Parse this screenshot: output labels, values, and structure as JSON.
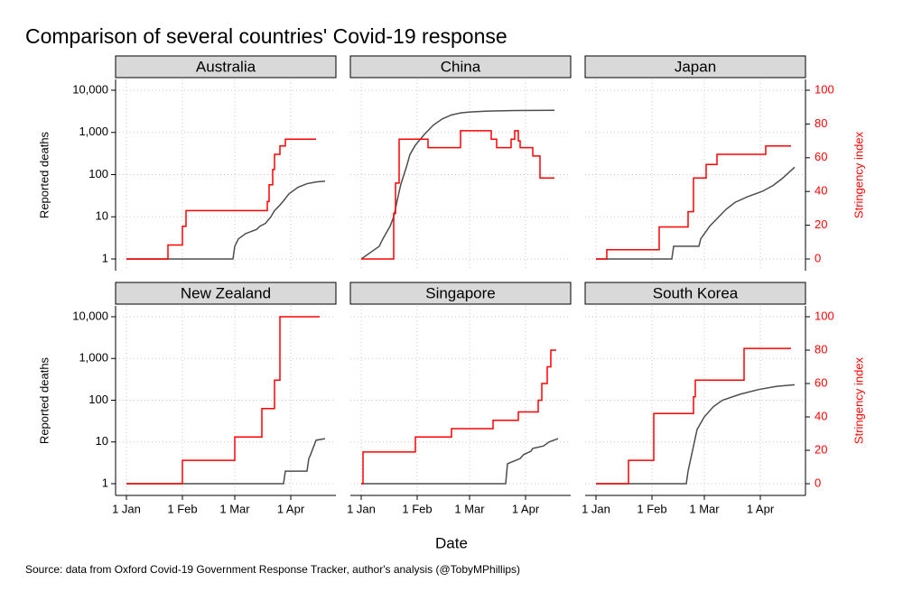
{
  "title": "Comparison of several countries' Covid-19 response",
  "x_label": "Date",
  "source": "Source: data from Oxford Covid-19 Government Response Tracker, author's analysis (@TobyMPhillips)",
  "chart_data": [
    {
      "type": "line",
      "title": "Australia",
      "y_label": "Reported deaths",
      "xlim": [
        "1 Jan",
        "20 Apr"
      ],
      "xticks": [
        "1 Jan",
        "1 Feb",
        "1 Mar",
        "1 Apr"
      ],
      "ylim": [
        1,
        10000
      ],
      "y_scale": "log",
      "yticks": [
        1,
        10,
        100,
        {
          "value": 1000,
          "label": "1,000"
        },
        {
          "value": 10000,
          "label": "10,000"
        }
      ],
      "y2lim": [
        0,
        100
      ],
      "grid": true,
      "series": [
        {
          "color": "#4d4d4d",
          "axis": "y",
          "x": [
            "1 Jan",
            "29 Feb",
            "1 Mar",
            "3 Mar",
            "7 Mar",
            "13 Mar",
            "15 Mar",
            "18 Mar",
            "21 Mar",
            "23 Mar",
            "26 Mar",
            "28 Mar",
            "31 Mar",
            "5 Apr",
            "10 Apr",
            "15 Apr",
            "20 Apr"
          ],
          "values": [
            1,
            1,
            2,
            3,
            4,
            5,
            6,
            7,
            10,
            14,
            19,
            24,
            35,
            50,
            61,
            67,
            70
          ]
        },
        {
          "color": "#ff0000",
          "axis": "y2",
          "step": true,
          "x": [
            "1 Jan",
            "24 Jan",
            "1 Feb",
            "3 Feb",
            "19 Mar",
            "20 Mar",
            "22 Mar",
            "23 Mar",
            "26 Mar",
            "29 Mar",
            "15 Apr"
          ],
          "values": [
            0,
            8.3,
            19.4,
            28.7,
            34,
            44,
            53,
            62,
            67,
            71,
            71
          ]
        }
      ]
    },
    {
      "type": "line",
      "title": "China",
      "xlim": [
        "1 Jan",
        "20 Apr"
      ],
      "xticks": [
        "1 Jan",
        "1 Feb",
        "1 Mar",
        "1 Apr"
      ],
      "ylim": [
        1,
        10000
      ],
      "y_scale": "log",
      "yticks": [
        1,
        10,
        100,
        {
          "value": 1000,
          "label": "1,000"
        },
        {
          "value": 10000,
          "label": "10,000"
        }
      ],
      "y2lim": [
        0,
        100
      ],
      "grid": true,
      "series": [
        {
          "color": "#4d4d4d",
          "axis": "y",
          "x": [
            "1 Jan",
            "11 Jan",
            "13 Jan",
            "17 Jan",
            "19 Jan",
            "21 Jan",
            "23 Jan",
            "26 Jan",
            "28 Jan",
            "31 Jan",
            "5 Feb",
            "10 Feb",
            "15 Feb",
            "20 Feb",
            "25 Feb",
            "1 Mar",
            "11 Mar",
            "26 Mar",
            "17 Apr"
          ],
          "values": [
            1,
            2,
            3,
            6,
            10,
            25,
            60,
            150,
            300,
            500,
            900,
            1500,
            2100,
            2600,
            2900,
            3050,
            3200,
            3300,
            3340
          ]
        },
        {
          "color": "#ff0000",
          "axis": "y2",
          "step": true,
          "x": [
            "1 Jan",
            "19 Jan",
            "20 Jan",
            "22 Jan",
            "7 Feb",
            "25 Feb",
            "13 Mar",
            "16 Mar",
            "24 Mar",
            "26 Mar",
            "28 Mar",
            "29 Mar",
            "5 Apr",
            "9 Apr",
            "17 Apr"
          ],
          "values": [
            0,
            27,
            45,
            71,
            66,
            76,
            71,
            66,
            71,
            76,
            70,
            66,
            61,
            48,
            48
          ]
        }
      ]
    },
    {
      "type": "line",
      "title": "Japan",
      "y2_label": "Stringency index",
      "xlim": [
        "1 Jan",
        "20 Apr"
      ],
      "xticks": [
        "1 Jan",
        "1 Feb",
        "1 Mar",
        "1 Apr"
      ],
      "ylim": [
        1,
        10000
      ],
      "y_scale": "log",
      "yticks": [
        1,
        10,
        100,
        {
          "value": 1000,
          "label": "1,000"
        },
        {
          "value": 10000,
          "label": "10,000"
        }
      ],
      "y2lim": [
        0,
        100
      ],
      "y2ticks": [
        0,
        20,
        40,
        60,
        80,
        100
      ],
      "grid": true,
      "series": [
        {
          "color": "#4d4d4d",
          "axis": "y",
          "x": [
            "1 Jan",
            "12 Feb",
            "13 Feb",
            "27 Feb",
            "28 Feb",
            "4 Mar",
            "9 Mar",
            "13 Mar",
            "18 Mar",
            "25 Mar",
            "2 Apr",
            "8 Apr",
            "13 Apr",
            "20 Apr"
          ],
          "values": [
            1,
            1,
            2,
            2,
            3,
            6,
            10,
            15,
            22,
            30,
            40,
            55,
            80,
            150
          ]
        },
        {
          "color": "#ff0000",
          "axis": "y2",
          "step": true,
          "x": [
            "1 Jan",
            "7 Jan",
            "5 Feb",
            "21 Feb",
            "24 Feb",
            "2 Mar",
            "8 Mar",
            "4 Apr",
            "18 Apr"
          ],
          "values": [
            0,
            5.5,
            19,
            28,
            48,
            56,
            62,
            67,
            67
          ]
        }
      ]
    },
    {
      "type": "line",
      "title": "New Zealand",
      "y_label": "Reported deaths",
      "xlim": [
        "1 Jan",
        "20 Apr"
      ],
      "xticks": [
        "1 Jan",
        "1 Feb",
        "1 Mar",
        "1 Apr"
      ],
      "ylim": [
        1,
        10000
      ],
      "y_scale": "log",
      "yticks": [
        1,
        10,
        100,
        {
          "value": 1000,
          "label": "1,000"
        },
        {
          "value": 10000,
          "label": "10,000"
        }
      ],
      "y2lim": [
        0,
        100
      ],
      "grid": true,
      "series": [
        {
          "color": "#4d4d4d",
          "axis": "y",
          "x": [
            "1 Jan",
            "28 Mar",
            "29 Mar",
            "10 Apr",
            "11 Apr",
            "12 Apr",
            "15 Apr",
            "20 Apr"
          ],
          "values": [
            1,
            1,
            2,
            2,
            4,
            5,
            11,
            12
          ]
        },
        {
          "color": "#ff0000",
          "axis": "y2",
          "step": true,
          "x": [
            "1 Jan",
            "1 Feb",
            "1 Mar",
            "16 Mar",
            "23 Mar",
            "26 Mar",
            "17 Apr"
          ],
          "values": [
            0,
            14,
            28,
            45,
            62,
            100,
            100
          ]
        }
      ]
    },
    {
      "type": "line",
      "title": "Singapore",
      "xlim": [
        "1 Jan",
        "20 Apr"
      ],
      "xticks": [
        "1 Jan",
        "1 Feb",
        "1 Mar",
        "1 Apr"
      ],
      "ylim": [
        1,
        10000
      ],
      "y_scale": "log",
      "yticks": [
        1,
        10,
        100,
        {
          "value": 1000,
          "label": "1,000"
        },
        {
          "value": 10000,
          "label": "10,000"
        }
      ],
      "y2lim": [
        0,
        100
      ],
      "grid": true,
      "series": [
        {
          "color": "#4d4d4d",
          "axis": "y",
          "x": [
            "1 Jan",
            "21 Mar",
            "22 Mar",
            "29 Mar",
            "31 Mar",
            "4 Apr",
            "5 Apr",
            "11 Apr",
            "14 Apr",
            "19 Apr"
          ],
          "values": [
            1,
            1,
            3,
            4,
            5,
            6,
            7,
            8,
            10,
            12
          ]
        },
        {
          "color": "#ff0000",
          "axis": "y2",
          "step": true,
          "x": [
            "1 Jan",
            "2 Jan",
            "31 Jan",
            "20 Feb",
            "14 Mar",
            "28 Mar",
            "8 Apr",
            "10 Apr",
            "13 Apr",
            "15 Apr",
            "18 Apr"
          ],
          "values": [
            0,
            19,
            28,
            33,
            38,
            43,
            50,
            60,
            70,
            80,
            80
          ]
        }
      ]
    },
    {
      "type": "line",
      "title": "South Korea",
      "y2_label": "Stringency index",
      "xlim": [
        "1 Jan",
        "20 Apr"
      ],
      "xticks": [
        "1 Jan",
        "1 Feb",
        "1 Mar",
        "1 Apr"
      ],
      "ylim": [
        1,
        10000
      ],
      "y_scale": "log",
      "yticks": [
        1,
        10,
        100,
        {
          "value": 1000,
          "label": "1,000"
        },
        {
          "value": 10000,
          "label": "10,000"
        }
      ],
      "y2lim": [
        0,
        100
      ],
      "y2ticks": [
        0,
        20,
        40,
        60,
        80,
        100
      ],
      "grid": true,
      "series": [
        {
          "color": "#4d4d4d",
          "axis": "y",
          "x": [
            "1 Jan",
            "20 Feb",
            "21 Feb",
            "24 Feb",
            "26 Feb",
            "1 Mar",
            "6 Mar",
            "11 Mar",
            "21 Mar",
            "31 Mar",
            "10 Apr",
            "20 Apr"
          ],
          "values": [
            1,
            1,
            2,
            8,
            20,
            40,
            70,
            100,
            140,
            180,
            215,
            235
          ]
        },
        {
          "color": "#ff0000",
          "axis": "y2",
          "step": true,
          "x": [
            "1 Jan",
            "19 Jan",
            "2 Feb",
            "24 Feb",
            "25 Feb",
            "23 Mar",
            "18 Apr"
          ],
          "values": [
            0,
            14,
            42,
            52,
            62,
            81,
            81
          ]
        }
      ]
    }
  ]
}
